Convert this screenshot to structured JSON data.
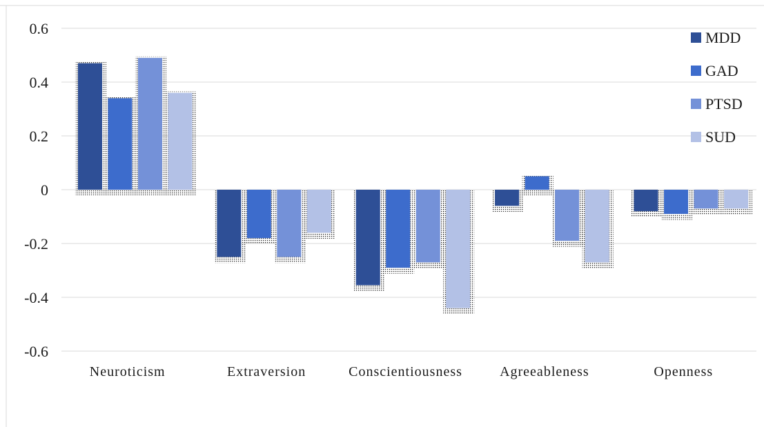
{
  "chart_data": {
    "type": "bar",
    "title": "",
    "xlabel": "",
    "ylabel": "",
    "categories": [
      "Neuroticism",
      "Extraversion",
      "Conscientiousness",
      "Agreeableness",
      "Openness"
    ],
    "series": [
      {
        "name": "MDD",
        "values": [
          0.47,
          -0.25,
          -0.355,
          -0.06,
          -0.08
        ]
      },
      {
        "name": "GAD",
        "values": [
          0.34,
          -0.18,
          -0.29,
          0.05,
          -0.09
        ]
      },
      {
        "name": "PTSD",
        "values": [
          0.49,
          -0.25,
          -0.27,
          -0.19,
          -0.07
        ]
      },
      {
        "name": "SUD",
        "values": [
          0.36,
          -0.16,
          -0.44,
          -0.27,
          -0.07
        ]
      }
    ],
    "ylim": [
      -0.6,
      0.6
    ],
    "yticks": [
      0.6,
      0.4,
      0.2,
      0,
      -0.2,
      -0.4,
      -0.6
    ],
    "ytick_labels": [
      "0.6",
      "0.4",
      "0.2",
      "0",
      "-0.2",
      "-0.4",
      "-0.6"
    ],
    "grid": true,
    "legend_position": "top-right",
    "colors": {
      "MDD": "#2e4f96",
      "GAD": "#3d6ccc",
      "PTSD": "#7491d8",
      "SUD": "#b3c1e6",
      "grid": "#d9d9d9",
      "error_dots": "#000000"
    }
  }
}
